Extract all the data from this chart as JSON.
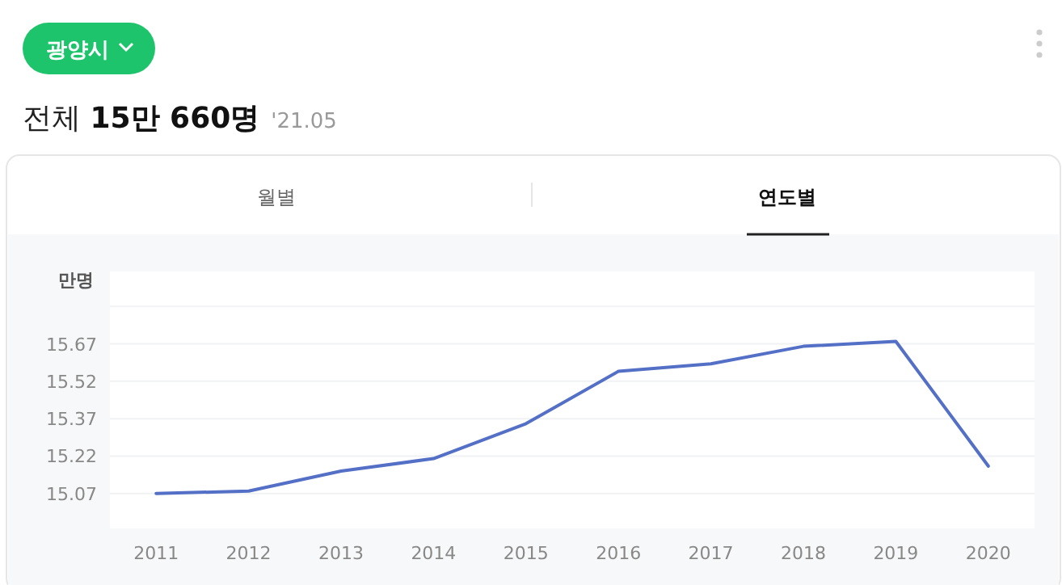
{
  "chart_data": {
    "type": "line",
    "title": "전체 15만 660명",
    "subtitle": "'21.05",
    "ylabel": "만명",
    "annotations": [
      "광양시",
      "월별",
      "연도별"
    ],
    "categories": [
      "2011",
      "2012",
      "2013",
      "2014",
      "2015",
      "2016",
      "2017",
      "2018",
      "2019",
      "2020"
    ],
    "series": [
      {
        "color": "#5470c6",
        "values": [
          15.07,
          15.08,
          15.16,
          15.21,
          15.35,
          15.56,
          15.59,
          15.66,
          15.68,
          15.18
        ]
      }
    ],
    "ylim": [
      14.93,
      15.96
    ],
    "yticks": [
      15.07,
      15.22,
      15.37,
      15.52,
      15.67,
      {
        "value": 15.82,
        "label": null
      }
    ],
    "grid": "y",
    "marker": "none",
    "line_style": "solid"
  }
}
